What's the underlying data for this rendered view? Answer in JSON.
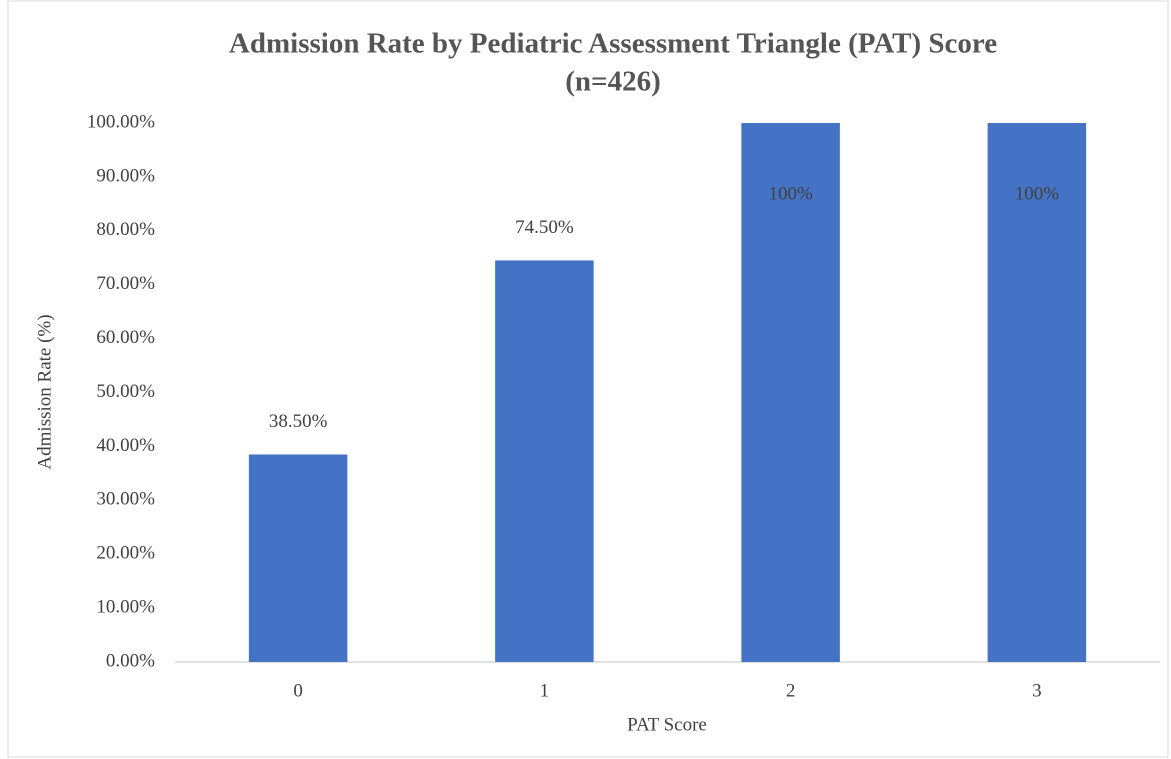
{
  "chart_data": {
    "type": "bar",
    "title": "Admission Rate by Pediatric Assessment Triangle (PAT) Score",
    "subtitle": "(n=426)",
    "x_label": "PAT Score",
    "y_label": "Admission Rate (%)",
    "categories": [
      "0",
      "1",
      "2",
      "3"
    ],
    "values": [
      38.5,
      74.5,
      100,
      100
    ],
    "value_labels": [
      "38.50%",
      "74.50%",
      "100%",
      "100%"
    ],
    "color": "#4472c4",
    "ylim": [
      0,
      100
    ],
    "yticks": [
      {
        "value": 0,
        "label": "0.00%"
      },
      {
        "value": 10,
        "label": "10.00%"
      },
      {
        "value": 20,
        "label": "20.00%"
      },
      {
        "value": 30,
        "label": "30.00%"
      },
      {
        "value": 40,
        "label": "40.00%"
      },
      {
        "value": 50,
        "label": "50.00%"
      },
      {
        "value": 60,
        "label": "60.00%"
      },
      {
        "value": 70,
        "label": "70.00%"
      },
      {
        "value": 80,
        "label": "80.00%"
      },
      {
        "value": 90,
        "label": "90.00%"
      },
      {
        "value": 100,
        "label": "100.00%"
      }
    ],
    "grid": false
  }
}
